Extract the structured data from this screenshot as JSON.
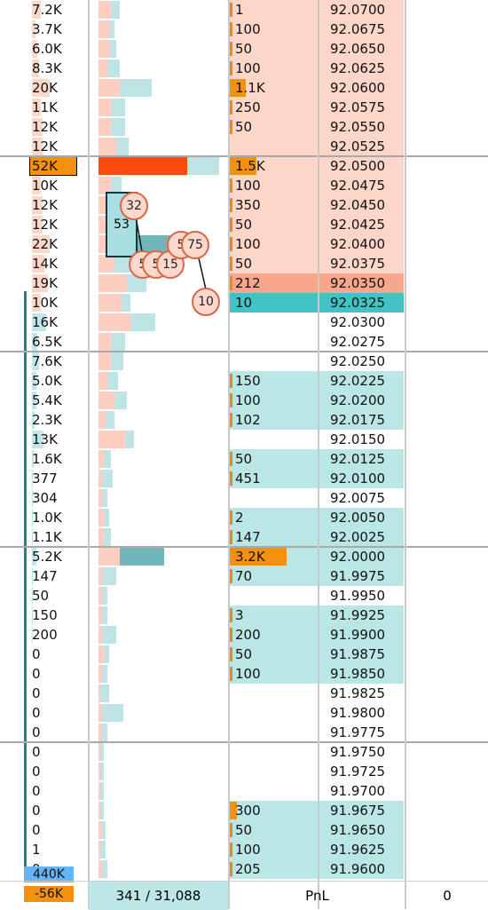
{
  "rows": [
    {
      "price": "92.0700",
      "vol": "7.2K",
      "order": "1",
      "side": "ask",
      "volw": 10,
      "profA": 14,
      "profB": 10
    },
    {
      "price": "92.0675",
      "vol": "3.7K",
      "order": "100",
      "side": "ask",
      "volw": 4,
      "profA": 12,
      "profB": 6
    },
    {
      "price": "92.0650",
      "vol": "6.0K",
      "order": "50",
      "side": "ask",
      "volw": 6,
      "profA": 12,
      "profB": 8
    },
    {
      "price": "92.0625",
      "vol": "8.3K",
      "order": "100",
      "side": "ask",
      "volw": 8,
      "profA": 10,
      "profB": 14
    },
    {
      "price": "92.0600",
      "vol": "20K",
      "order": "1.1K",
      "side": "ask",
      "volw": 20,
      "profA": 24,
      "profB": 36,
      "orangew": 18
    },
    {
      "price": "92.0575",
      "vol": "11K",
      "order": "250",
      "side": "ask",
      "volw": 10,
      "profA": 14,
      "profB": 16
    },
    {
      "price": "92.0550",
      "vol": "12K",
      "order": "50",
      "side": "ask",
      "volw": 12,
      "profA": 14,
      "profB": 16
    },
    {
      "price": "92.0525",
      "vol": "12K",
      "order": "",
      "side": "ask",
      "volw": 12,
      "profA": 20,
      "profB": 14
    },
    {
      "price": "92.0500",
      "vol": "52K",
      "order": "1.5K",
      "side": "ask",
      "volw": 50,
      "profA": 100,
      "profB": 36,
      "orangew": 30,
      "big": true
    },
    {
      "price": "92.0475",
      "vol": "10K",
      "order": "100",
      "side": "ask",
      "volw": 10,
      "profA": 14,
      "profB": 12
    },
    {
      "price": "92.0450",
      "vol": "12K",
      "order": "350",
      "side": "ask",
      "volw": 12,
      "profA": 14,
      "profB": 18
    },
    {
      "price": "92.0425",
      "vol": "12K",
      "order": "50",
      "side": "ask",
      "volw": 12,
      "profA": 16,
      "profB": 20
    },
    {
      "price": "92.0400",
      "vol": "22K",
      "order": "100",
      "side": "ask",
      "volw": 20,
      "profA": 22,
      "profB": 60
    },
    {
      "price": "92.0375",
      "vol": "14K",
      "order": "50",
      "side": "ask",
      "volw": 14,
      "profA": 18,
      "profB": 30
    },
    {
      "price": "92.0350",
      "vol": "19K",
      "order": "212",
      "side": "askhl",
      "volw": 18,
      "profA": 32,
      "profB": 22
    },
    {
      "price": "92.0325",
      "vol": "10K",
      "order": "10",
      "side": "bidhl",
      "volw": 10,
      "profA": 26,
      "profB": 10
    },
    {
      "price": "92.0300",
      "vol": "16K",
      "order": "",
      "side": "none",
      "volw": 16,
      "profA": 36,
      "profB": 28
    },
    {
      "price": "92.0275",
      "vol": "6.5K",
      "order": "",
      "side": "none",
      "volw": 6,
      "profA": 14,
      "profB": 16
    },
    {
      "price": "92.0250",
      "vol": "7.6K",
      "order": "",
      "side": "none",
      "volw": 8,
      "profA": 14,
      "profB": 14
    },
    {
      "price": "92.0225",
      "vol": "5.0K",
      "order": "150",
      "side": "bid",
      "volw": 5,
      "profA": 10,
      "profB": 12
    },
    {
      "price": "92.0200",
      "vol": "5.4K",
      "order": "100",
      "side": "bid",
      "volw": 5,
      "profA": 18,
      "profB": 14
    },
    {
      "price": "92.0175",
      "vol": "2.3K",
      "order": "102",
      "side": "bid",
      "volw": 3,
      "profA": 8,
      "profB": 10
    },
    {
      "price": "92.0150",
      "vol": "13K",
      "order": "",
      "side": "none",
      "volw": 13,
      "profA": 30,
      "profB": 10
    },
    {
      "price": "92.0125",
      "vol": "1.6K",
      "order": "50",
      "side": "bid",
      "volw": 2,
      "profA": 6,
      "profB": 8
    },
    {
      "price": "92.0100",
      "vol": "377",
      "order": "451",
      "side": "bid",
      "volw": 1,
      "profA": 4,
      "profB": 12
    },
    {
      "price": "92.0075",
      "vol": "304",
      "order": "",
      "side": "none",
      "volw": 1,
      "profA": 4,
      "profB": 6
    },
    {
      "price": "92.0050",
      "vol": "1.0K",
      "order": "2",
      "side": "bid",
      "volw": 1,
      "profA": 6,
      "profB": 6
    },
    {
      "price": "92.0025",
      "vol": "1.1K",
      "order": "147",
      "side": "bid",
      "volw": 1,
      "profA": 6,
      "profB": 8
    },
    {
      "price": "92.0000",
      "vol": "5.2K",
      "order": "3.2K",
      "side": "bid",
      "volw": 5,
      "profA": 24,
      "profB": 50,
      "orangew": 64
    },
    {
      "price": "91.9975",
      "vol": "147",
      "order": "70",
      "side": "bid",
      "volw": 1,
      "profA": 4,
      "profB": 16
    },
    {
      "price": "91.9950",
      "vol": "50",
      "order": "",
      "side": "none",
      "volw": 1,
      "profA": 4,
      "profB": 6
    },
    {
      "price": "91.9925",
      "vol": "150",
      "order": "3",
      "side": "bid",
      "volw": 1,
      "profA": 4,
      "profB": 6
    },
    {
      "price": "91.9900",
      "vol": "200",
      "order": "200",
      "side": "bid",
      "volw": 1,
      "profA": 4,
      "profB": 16
    },
    {
      "price": "91.9875",
      "vol": "0",
      "order": "50",
      "side": "bid",
      "volw": 0,
      "profA": 6,
      "profB": 6
    },
    {
      "price": "91.9850",
      "vol": "0",
      "order": "100",
      "side": "bid",
      "volw": 0,
      "profA": 4,
      "profB": 6
    },
    {
      "price": "91.9825",
      "vol": "0",
      "order": "",
      "side": "none",
      "volw": 0,
      "profA": 2,
      "profB": 10
    },
    {
      "price": "91.9800",
      "vol": "0",
      "order": "",
      "side": "none",
      "volw": 0,
      "profA": 4,
      "profB": 24
    },
    {
      "price": "91.9775",
      "vol": "0",
      "order": "",
      "side": "none",
      "volw": 0,
      "profA": 4,
      "profB": 6
    },
    {
      "price": "91.9750",
      "vol": "0",
      "order": "",
      "side": "none",
      "volw": 0,
      "profA": 2,
      "profB": 4
    },
    {
      "price": "91.9725",
      "vol": "0",
      "order": "",
      "side": "none",
      "volw": 0,
      "profA": 2,
      "profB": 4
    },
    {
      "price": "91.9700",
      "vol": "0",
      "order": "",
      "side": "none",
      "volw": 0,
      "profA": 2,
      "profB": 4
    },
    {
      "price": "91.9675",
      "vol": "0",
      "order": "300",
      "side": "bid",
      "volw": 0,
      "profA": 2,
      "profB": 4,
      "orangew": 8
    },
    {
      "price": "91.9650",
      "vol": "0",
      "order": "50",
      "side": "bid",
      "volw": 0,
      "profA": 4,
      "profB": 4
    },
    {
      "price": "91.9625",
      "vol": "1",
      "order": "100",
      "side": "bid",
      "volw": 0,
      "profA": 2,
      "profB": 6
    },
    {
      "price": "91.9600",
      "vol": "0",
      "order": "205",
      "side": "bid",
      "volw": 0,
      "profA": 4,
      "profB": 6
    }
  ],
  "callouts": {
    "box_label": "53",
    "bubble_32": "32",
    "bubble_5a": "5",
    "bubble_5b": "5",
    "bubble_15": "15",
    "bubble_5c": "5",
    "bubble_75": "75",
    "bubble_10": "10"
  },
  "tags": {
    "total_volume": "440K",
    "delta": "-56K"
  },
  "footer": {
    "trades": "341 / 31,088",
    "pnl_label": "PnL",
    "pnl_value": "0"
  },
  "colors": {
    "ask": "#fcd6c8",
    "bid": "#bbe6e6",
    "ask_highlight": "#f8a78d",
    "bid_highlight": "#42c2c5",
    "order_orange": "#f29110",
    "profile_red": "#fa4a10",
    "profile_teal": "#6fb7b8"
  }
}
